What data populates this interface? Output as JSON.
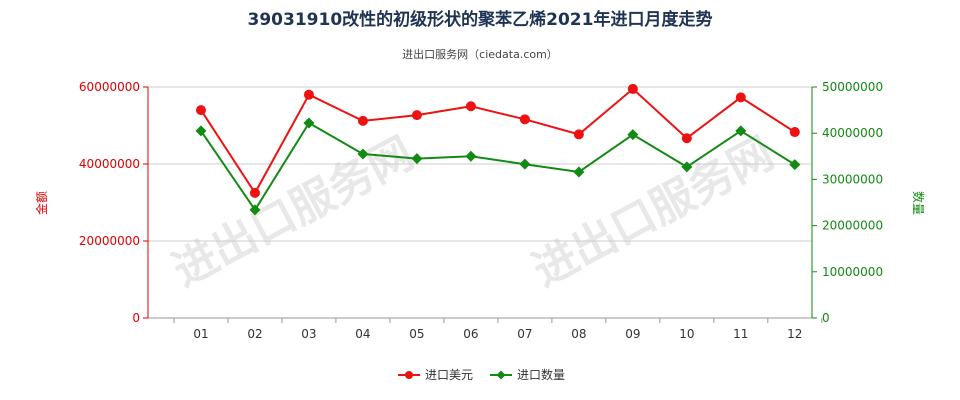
{
  "chart_data": {
    "type": "line",
    "title": "39031910改性的初级形状的聚苯乙烯2021年进口月度走势",
    "subtitle": "进出口服务网（ciedata.com）",
    "watermark": "进出口服务网",
    "categories": [
      "01",
      "02",
      "03",
      "04",
      "05",
      "06",
      "07",
      "08",
      "09",
      "10",
      "11",
      "12"
    ],
    "y_left": {
      "label": "金额",
      "min": 0,
      "max": 60000000,
      "ticks": [
        0,
        20000000,
        40000000,
        60000000
      ],
      "tick_labels": [
        "0",
        "20000000",
        "40000000",
        "60000000"
      ],
      "color": "#e00000"
    },
    "y_right": {
      "label": "数量",
      "min": 0,
      "max": 50000000,
      "ticks": [
        0,
        10000000,
        20000000,
        30000000,
        40000000,
        50000000
      ],
      "tick_labels": [
        "0",
        "10000000",
        "20000000",
        "30000000",
        "40000000",
        "50000000"
      ],
      "color": "#138a13"
    },
    "series": [
      {
        "name": "进口美元",
        "axis": "left",
        "color": "#ee1111",
        "marker": "circle",
        "values": [
          54000000,
          32500000,
          58000000,
          51200000,
          52700000,
          55000000,
          51600000,
          47700000,
          59500000,
          46700000,
          57300000,
          48300000
        ]
      },
      {
        "name": "进口数量",
        "axis": "right",
        "color": "#138a13",
        "marker": "diamond",
        "values": [
          40500000,
          23400000,
          42200000,
          35500000,
          34500000,
          35000000,
          33300000,
          31600000,
          39700000,
          32700000,
          40500000,
          33200000
        ]
      }
    ],
    "legend_position": "bottom-center",
    "grid": true
  }
}
